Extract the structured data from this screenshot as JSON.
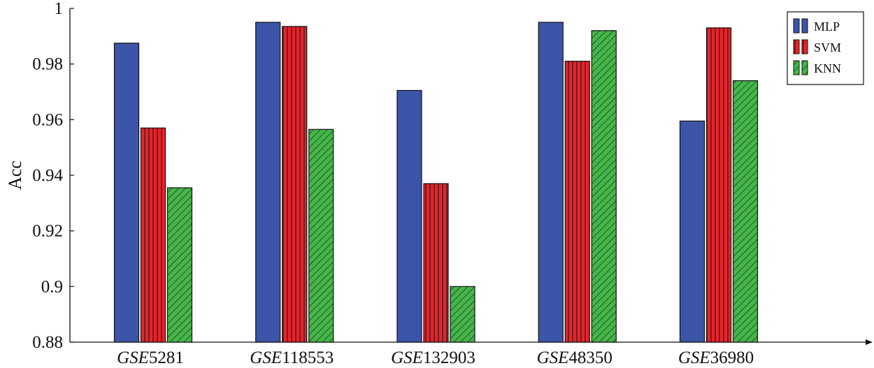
{
  "chart_data": {
    "type": "bar",
    "title": "",
    "xlabel": "",
    "ylabel": "Acc",
    "ylim": [
      0.88,
      1.0
    ],
    "yticks": [
      "0.88",
      "0.9",
      "0.92",
      "0.94",
      "0.96",
      "0.98",
      "1"
    ],
    "categories": [
      {
        "prefix": "GSE",
        "number": "5281"
      },
      {
        "prefix": "GSE",
        "number": "118553"
      },
      {
        "prefix": "GSE",
        "number": "132903"
      },
      {
        "prefix": "GSE",
        "number": "48350"
      },
      {
        "prefix": "GSE",
        "number": "36980"
      }
    ],
    "series": [
      {
        "name": "MLP",
        "color": "#3c55a8",
        "pattern": "solid",
        "values": [
          0.9875,
          0.995,
          0.9705,
          0.995,
          0.9595
        ]
      },
      {
        "name": "SVM",
        "color": "#e4252b",
        "pattern": "vertical-lines",
        "values": [
          0.957,
          0.9935,
          0.937,
          0.981,
          0.993
        ]
      },
      {
        "name": "KNN",
        "color": "#45b649",
        "pattern": "diagonal-lines",
        "values": [
          0.9355,
          0.9565,
          0.9,
          0.992,
          0.974
        ]
      }
    ],
    "grid": false,
    "legend_position": "top-right"
  }
}
